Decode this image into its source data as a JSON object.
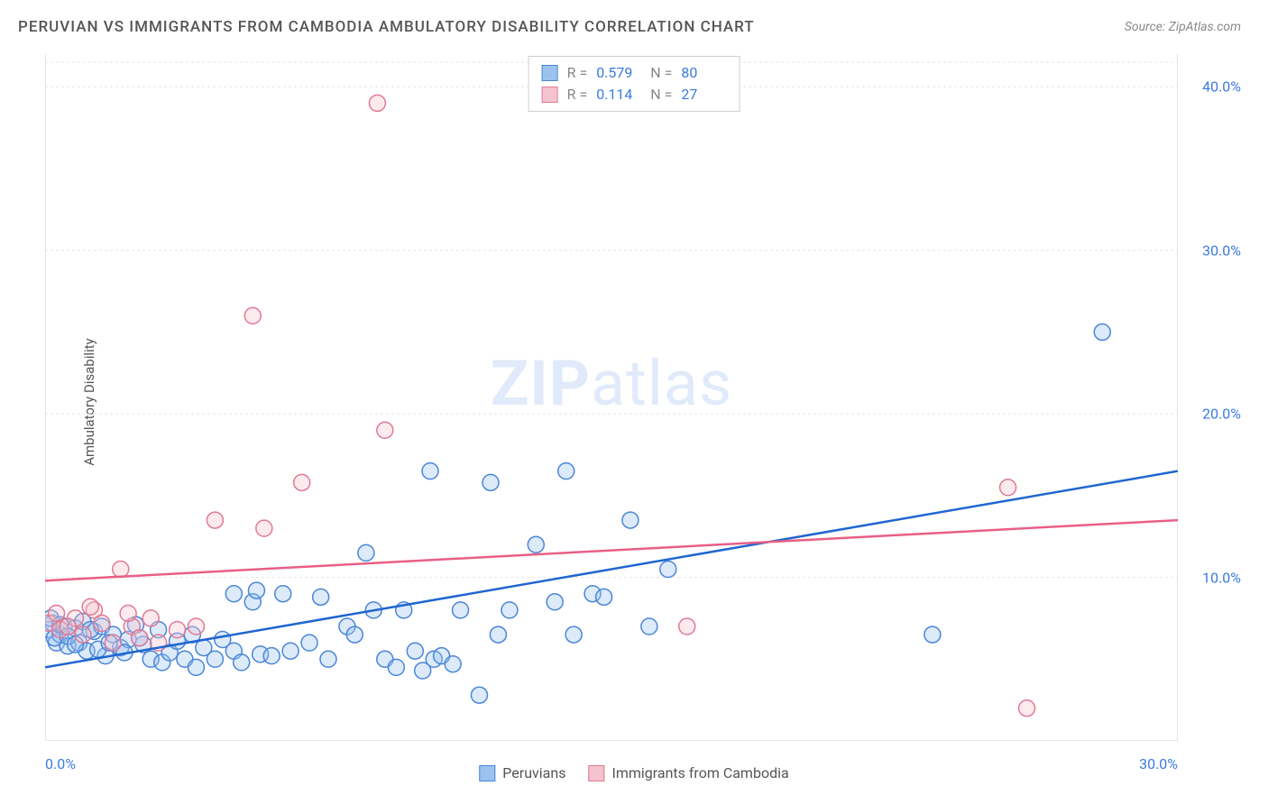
{
  "title": "PERUVIAN VS IMMIGRANTS FROM CAMBODIA AMBULATORY DISABILITY CORRELATION CHART",
  "source": "Source: ZipAtlas.com",
  "y_axis_label": "Ambulatory Disability",
  "watermark_bold": "ZIP",
  "watermark_light": "atlas",
  "chart": {
    "type": "scatter",
    "xlim": [
      0,
      30
    ],
    "ylim": [
      0,
      42
    ],
    "x_ticks": [
      0,
      3.75,
      7.5,
      11.25,
      15,
      18.75,
      22.5,
      26.25,
      30
    ],
    "x_tick_labels_shown": {
      "0": "0.0%",
      "30": "30.0%"
    },
    "y_grid": [
      10,
      20,
      30,
      40
    ],
    "y_tick_labels": {
      "10": "10.0%",
      "20": "20.0%",
      "30": "30.0%",
      "40": "40.0%"
    },
    "background_color": "#ffffff",
    "grid_color": "#e5e5e5",
    "marker_radius": 9,
    "marker_radius_small": 7,
    "series": [
      {
        "name": "Peruvians",
        "color_fill": "#9cc3f0",
        "color_stroke": "#4a86d8",
        "R": "0.579",
        "N": "80",
        "trend": {
          "x1": 0,
          "y1": 4.5,
          "x2": 30,
          "y2": 16.5,
          "color": "#1f66d0"
        },
        "points": [
          [
            0.1,
            6.8
          ],
          [
            0.2,
            7.2
          ],
          [
            0.3,
            6.0
          ],
          [
            0.4,
            6.5
          ],
          [
            0.5,
            7.0
          ],
          [
            0.6,
            5.8
          ],
          [
            0.8,
            6.9
          ],
          [
            0.9,
            6.0
          ],
          [
            1.0,
            7.3
          ],
          [
            1.1,
            5.5
          ],
          [
            1.3,
            6.7
          ],
          [
            1.5,
            7.0
          ],
          [
            1.6,
            5.2
          ],
          [
            1.8,
            6.5
          ],
          [
            2.0,
            5.7
          ],
          [
            2.2,
            6.2
          ],
          [
            2.4,
            7.1
          ],
          [
            2.6,
            5.9
          ],
          [
            2.8,
            5.0
          ],
          [
            3.0,
            6.8
          ],
          [
            3.1,
            4.8
          ],
          [
            3.3,
            5.4
          ],
          [
            3.5,
            6.1
          ],
          [
            3.7,
            5.0
          ],
          [
            3.9,
            6.5
          ],
          [
            4.0,
            4.5
          ],
          [
            4.2,
            5.7
          ],
          [
            4.5,
            5.0
          ],
          [
            4.7,
            6.2
          ],
          [
            5.0,
            9.0
          ],
          [
            5.0,
            5.5
          ],
          [
            5.2,
            4.8
          ],
          [
            5.5,
            8.5
          ],
          [
            5.7,
            5.3
          ],
          [
            5.6,
            9.2
          ],
          [
            6.0,
            5.2
          ],
          [
            6.3,
            9.0
          ],
          [
            6.5,
            5.5
          ],
          [
            7.0,
            6.0
          ],
          [
            7.3,
            8.8
          ],
          [
            7.5,
            5.0
          ],
          [
            8.0,
            7.0
          ],
          [
            8.5,
            11.5
          ],
          [
            8.2,
            6.5
          ],
          [
            8.7,
            8.0
          ],
          [
            9.5,
            8.0
          ],
          [
            9.0,
            5.0
          ],
          [
            9.3,
            4.5
          ],
          [
            9.8,
            5.5
          ],
          [
            10.0,
            4.3
          ],
          [
            10.3,
            5.0
          ],
          [
            10.5,
            5.2
          ],
          [
            10.2,
            16.5
          ],
          [
            10.8,
            4.7
          ],
          [
            11.0,
            8.0
          ],
          [
            11.5,
            2.8
          ],
          [
            11.8,
            15.8
          ],
          [
            12.0,
            6.5
          ],
          [
            12.3,
            8.0
          ],
          [
            13.0,
            12.0
          ],
          [
            13.5,
            8.5
          ],
          [
            13.8,
            16.5
          ],
          [
            14.0,
            6.5
          ],
          [
            14.5,
            9.0
          ],
          [
            14.8,
            8.8
          ],
          [
            15.5,
            13.5
          ],
          [
            16.0,
            7.0
          ],
          [
            16.5,
            10.5
          ],
          [
            23.5,
            6.5
          ],
          [
            28.0,
            25.0
          ],
          [
            0.15,
            7.5
          ],
          [
            0.25,
            6.3
          ],
          [
            0.4,
            7.1
          ],
          [
            0.6,
            6.4
          ],
          [
            0.8,
            5.9
          ],
          [
            1.2,
            6.8
          ],
          [
            1.4,
            5.6
          ],
          [
            1.7,
            6.0
          ],
          [
            2.1,
            5.4
          ],
          [
            2.5,
            6.3
          ]
        ]
      },
      {
        "name": "Immigants from Cambodia",
        "legend_label": "Immigrants from Cambodia",
        "color_fill": "#f5c3cf",
        "color_stroke": "#e07a94",
        "R": "0.114",
        "N": "27",
        "trend": {
          "x1": 0,
          "y1": 9.8,
          "x2": 30,
          "y2": 13.5,
          "color": "#e85f86"
        },
        "points": [
          [
            0.1,
            7.2
          ],
          [
            0.4,
            6.8
          ],
          [
            0.8,
            7.5
          ],
          [
            1.0,
            6.5
          ],
          [
            1.3,
            8.0
          ],
          [
            1.5,
            7.2
          ],
          [
            1.8,
            6.0
          ],
          [
            2.0,
            10.5
          ],
          [
            2.3,
            7.0
          ],
          [
            2.5,
            6.3
          ],
          [
            2.8,
            7.5
          ],
          [
            3.0,
            6.0
          ],
          [
            3.5,
            6.8
          ],
          [
            4.0,
            7.0
          ],
          [
            4.5,
            13.5
          ],
          [
            5.5,
            26.0
          ],
          [
            5.8,
            13.0
          ],
          [
            6.8,
            15.8
          ],
          [
            8.8,
            39.0
          ],
          [
            9.0,
            19.0
          ],
          [
            17.0,
            7.0
          ],
          [
            25.5,
            15.5
          ],
          [
            26.0,
            2.0
          ],
          [
            0.3,
            7.8
          ],
          [
            0.6,
            7.0
          ],
          [
            1.2,
            8.2
          ],
          [
            2.2,
            7.8
          ]
        ]
      }
    ]
  },
  "legend_stats": {
    "r_label": "R =",
    "n_label": "N ="
  },
  "bottom_legend": {
    "series1": "Peruvians",
    "series2": "Immigrants from Cambodia"
  }
}
